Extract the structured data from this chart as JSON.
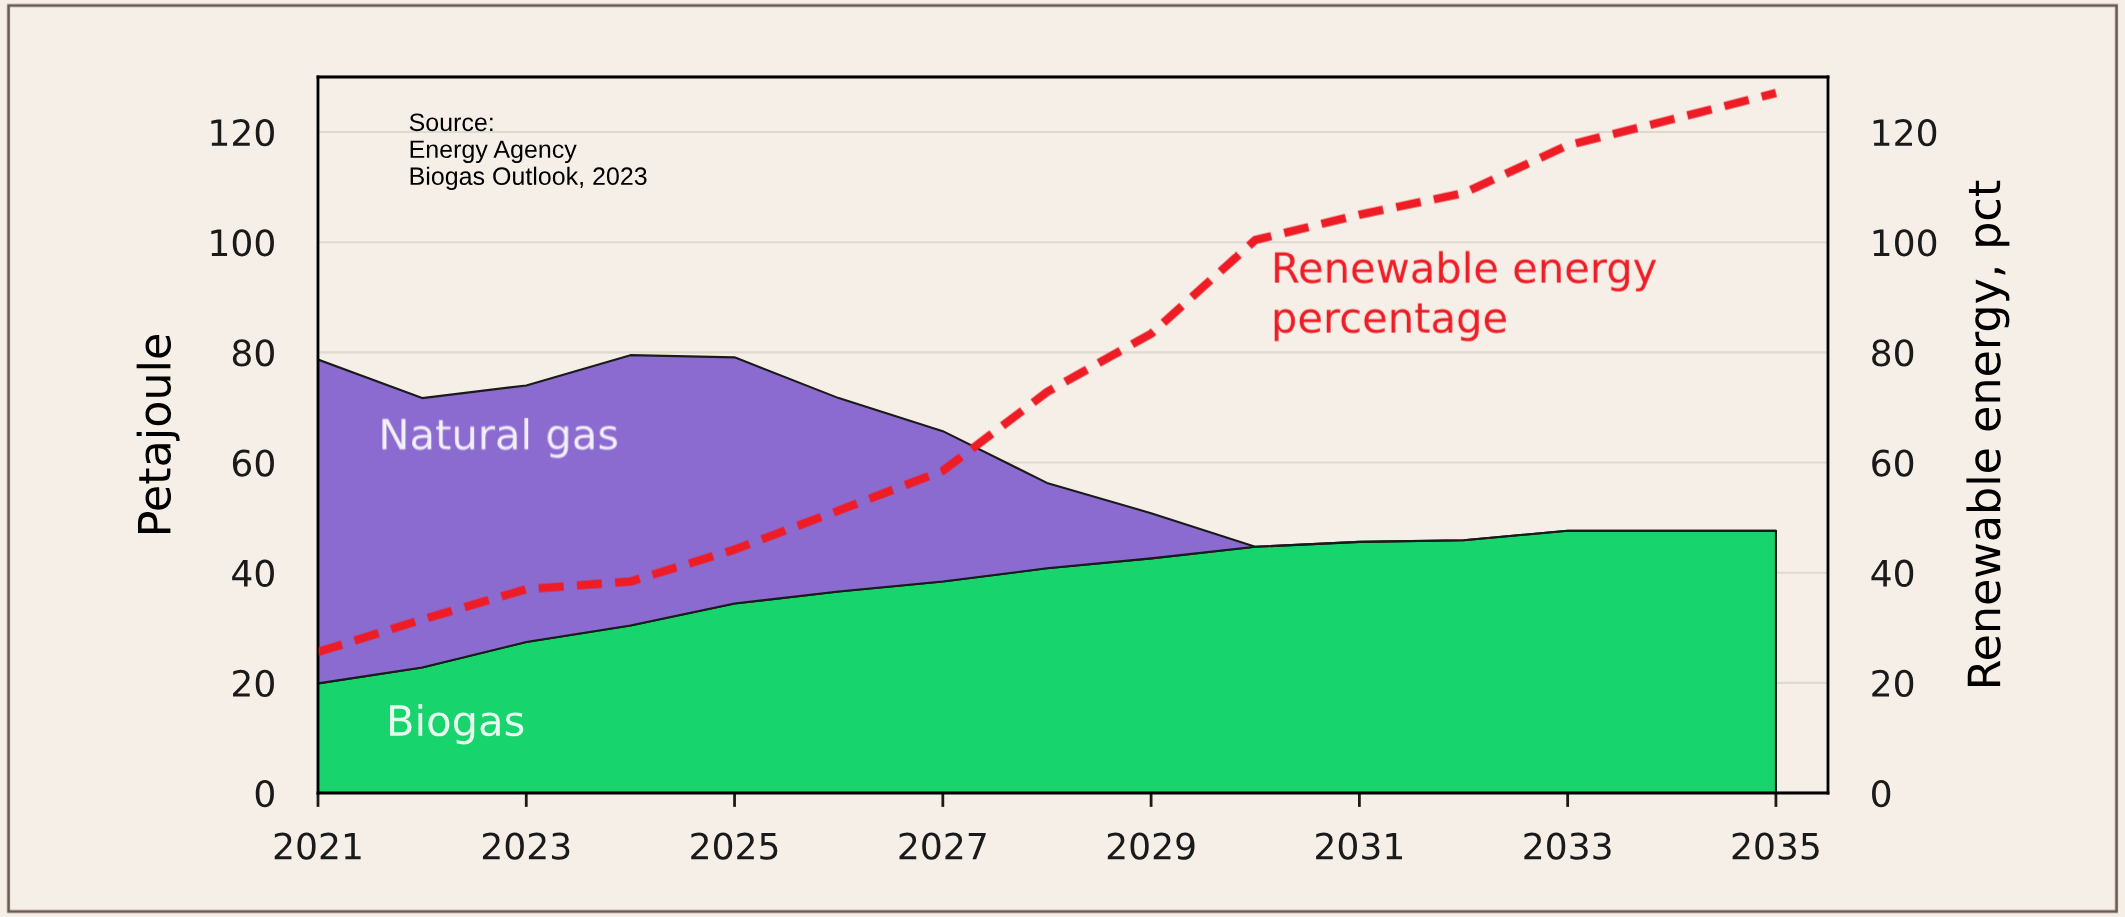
{
  "chart_data": {
    "type": "area",
    "stacked": true,
    "ylabel": "Petajoule",
    "y2label": "Renewable energy, pct",
    "x": [
      2021,
      2022,
      2023,
      2024,
      2025,
      2026,
      2027,
      2028,
      2029,
      2030,
      2031,
      2032,
      2033,
      2034,
      2035
    ],
    "series": [
      {
        "name": "Biogas",
        "color": "#18d46c",
        "values": [
          19.9,
          22.8,
          27.4,
          30.4,
          34.4,
          36.6,
          38.4,
          40.8,
          42.6,
          44.7,
          45.6,
          45.9,
          47.6,
          47.6,
          47.6
        ]
      },
      {
        "name": "Natural gas",
        "color": "#8c6bd0",
        "values": [
          58.8,
          48.9,
          46.6,
          49.1,
          44.7,
          35.1,
          27.3,
          15.5,
          8.2,
          0,
          0,
          0,
          0,
          0,
          0
        ]
      },
      {
        "name": "Renewable energy percentage",
        "type": "line",
        "axis": "y2",
        "color": "#ee1c25",
        "line_style": "dashed",
        "values": [
          25.6,
          31.5,
          37,
          38.4,
          44.2,
          51.3,
          58.5,
          72.8,
          83.4,
          100.4,
          105,
          108.9,
          117.6,
          122.3,
          127.1
        ]
      }
    ],
    "xlim": [
      2021,
      2035.5
    ],
    "xticks": [
      2021,
      2023,
      2025,
      2027,
      2029,
      2031,
      2033,
      2035
    ],
    "ylim": [
      0,
      130
    ],
    "yticks": [
      0,
      20,
      40,
      60,
      80,
      100,
      120
    ],
    "y2lim": [
      0,
      130
    ],
    "y2ticks": [
      0,
      20,
      40,
      60,
      80,
      100,
      120
    ],
    "grid": "y",
    "legend": false,
    "annotations": [
      "Source:\nEnergy Agency\nBiogas Outlook, 2023"
    ]
  }
}
